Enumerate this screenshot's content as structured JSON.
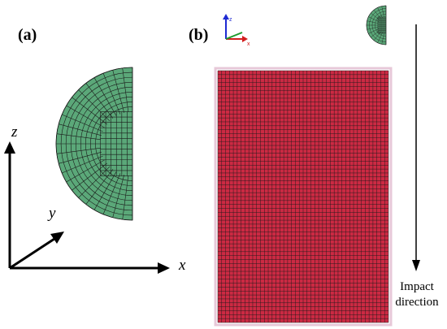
{
  "panels": {
    "a_label": "(a)",
    "b_label": "(b)"
  },
  "axes": {
    "x_label": "x",
    "y_label": "y",
    "z_label": "z"
  },
  "impact": {
    "line1": "Impact",
    "line2": "direction"
  },
  "colors": {
    "projectile": "#5ba879",
    "target": "#cc2a43",
    "mesh_line": "#1a1a1a",
    "triad_x": "#d21e1e",
    "triad_y": "#1e9a2e",
    "triad_z": "#1e2ad2"
  },
  "icons": [
    "coordinate-triad-icon",
    "down-arrow-icon"
  ]
}
